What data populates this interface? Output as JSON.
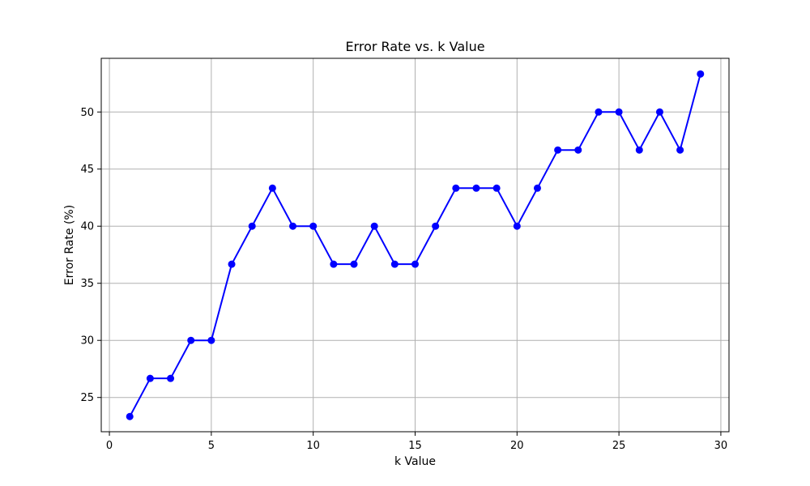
{
  "chart_data": {
    "type": "line",
    "title": "Error Rate vs. k Value",
    "xlabel": "k Value",
    "ylabel": "Error Rate (%)",
    "xlim": [
      -0.4,
      30.4
    ],
    "ylim": [
      22.0,
      54.7
    ],
    "xticks": [
      0,
      5,
      10,
      15,
      20,
      25,
      30
    ],
    "yticks": [
      25,
      30,
      35,
      40,
      45,
      50
    ],
    "grid": true,
    "series": [
      {
        "color": "#0000ff",
        "marker": "circle",
        "x": [
          1,
          2,
          3,
          4,
          5,
          6,
          7,
          8,
          9,
          10,
          11,
          12,
          13,
          14,
          15,
          16,
          17,
          18,
          19,
          20,
          21,
          22,
          23,
          24,
          25,
          26,
          27,
          28,
          29
        ],
        "y": [
          23.33,
          26.67,
          26.67,
          30.0,
          30.0,
          36.67,
          40.0,
          43.33,
          40.0,
          40.0,
          36.67,
          36.67,
          40.0,
          36.67,
          36.67,
          40.0,
          43.33,
          43.33,
          43.33,
          40.0,
          43.33,
          46.67,
          46.67,
          50.0,
          50.0,
          46.67,
          50.0,
          46.67,
          53.33
        ]
      }
    ]
  }
}
